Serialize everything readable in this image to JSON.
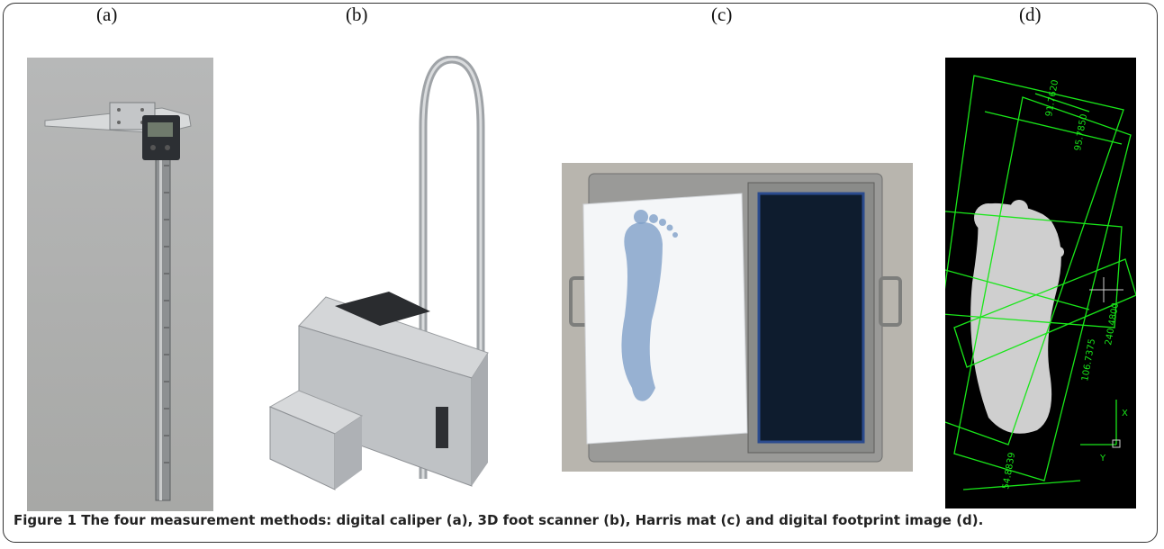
{
  "panels": [
    {
      "label": "(a)",
      "subject": "digital caliper"
    },
    {
      "label": "(b)",
      "subject": "3D foot scanner"
    },
    {
      "label": "(c)",
      "subject": "Harris mat"
    },
    {
      "label": "(d)",
      "subject": "digital footprint image"
    }
  ],
  "caption": {
    "text": "Figure 1 The four measurement methods: digital caliper (a), 3D foot scanner (b), Harris mat (c) and digital footprint image (d)."
  },
  "panel_d_annotations": [
    "91.7620",
    "95.7850",
    "240.4800",
    "106.7375",
    "54.8839",
    "X",
    "Y"
  ],
  "colors": {
    "scan_line": "#19e619",
    "scan_bg": "#000000",
    "frame": "#333333"
  }
}
